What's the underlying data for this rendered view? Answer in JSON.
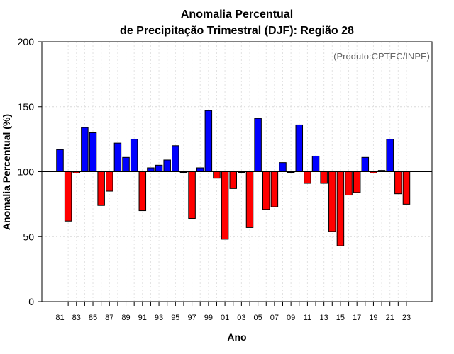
{
  "chart_data": {
    "type": "bar",
    "title_line1": "Anomalia Percentual",
    "title_line2": "de Precipitação Trimestral (DJF): Região 28",
    "source": "(Produto:CPTEC/INPE)",
    "xlabel": "Ano",
    "ylabel": "Anomalia Percentual (%)",
    "ylim": [
      0,
      200
    ],
    "yticks": [
      0,
      50,
      100,
      150,
      200
    ],
    "baseline": 100,
    "grid": true,
    "colors": {
      "above": "#0000ff",
      "below": "#ff0000",
      "outline": "#000000"
    },
    "x_tick_labels": [
      "81",
      "83",
      "85",
      "87",
      "89",
      "91",
      "93",
      "95",
      "97",
      "99",
      "01",
      "03",
      "05",
      "07",
      "09",
      "11",
      "13",
      "15",
      "17",
      "19",
      "21",
      "23"
    ],
    "categories": [
      "81",
      "82",
      "83",
      "84",
      "85",
      "86",
      "87",
      "88",
      "89",
      "90",
      "91",
      "92",
      "93",
      "94",
      "95",
      "96",
      "97",
      "98",
      "99",
      "00",
      "01",
      "02",
      "03",
      "04",
      "05",
      "06",
      "07",
      "08",
      "09",
      "10",
      "11",
      "12",
      "13",
      "14",
      "15",
      "16",
      "17",
      "18",
      "19",
      "20",
      "21",
      "22",
      "23"
    ],
    "values": [
      117,
      62,
      99,
      134,
      130,
      74,
      85,
      122,
      111,
      125,
      70,
      103,
      105,
      109,
      120,
      100,
      64,
      103,
      147,
      95,
      48,
      87,
      100,
      57,
      141,
      71,
      73,
      107,
      100,
      136,
      91,
      112,
      91,
      54,
      43,
      82,
      84,
      111,
      99,
      101,
      125,
      83,
      75
    ]
  }
}
